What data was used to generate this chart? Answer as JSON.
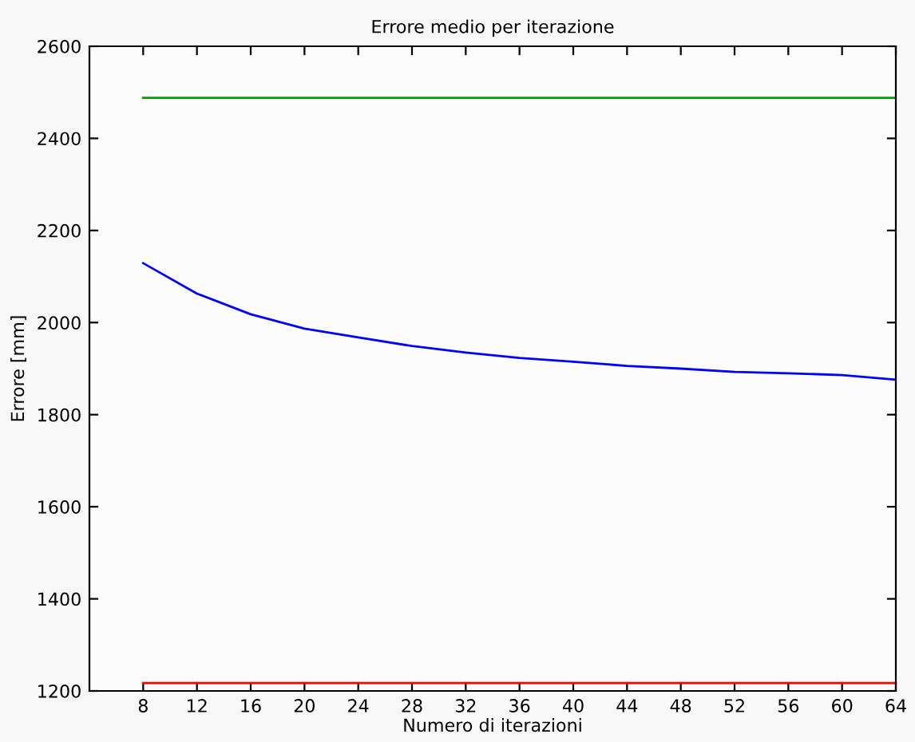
{
  "chart_data": {
    "type": "line",
    "title": "Errore medio per iterazione",
    "xlabel": "Numero di iterazioni",
    "ylabel": "Errore [mm]",
    "series": [
      {
        "color": "#00a000",
        "x": [
          8,
          64
        ],
        "values": [
          2488,
          2488
        ]
      },
      {
        "color": "#0000ff",
        "x": [
          8,
          12,
          16,
          20,
          24,
          28,
          32,
          36,
          40,
          44,
          48,
          52,
          56,
          60,
          64
        ],
        "values": [
          2129,
          2063,
          2018,
          1987,
          1968,
          1949,
          1935,
          1923,
          1915,
          1906,
          1900,
          1893,
          1890,
          1886,
          1876
        ]
      },
      {
        "color": "#ff0000",
        "x": [
          8,
          64
        ],
        "values": [
          1217,
          1217
        ]
      }
    ],
    "xlim": [
      4,
      64
    ],
    "xticks": [
      8,
      12,
      16,
      20,
      24,
      28,
      32,
      36,
      40,
      44,
      48,
      52,
      56,
      60,
      64
    ],
    "ylim": [
      1200,
      2600
    ],
    "yticks": [
      1200,
      1400,
      1600,
      1800,
      2000,
      2200,
      2400,
      2600
    ],
    "grid": false,
    "legend": false
  }
}
